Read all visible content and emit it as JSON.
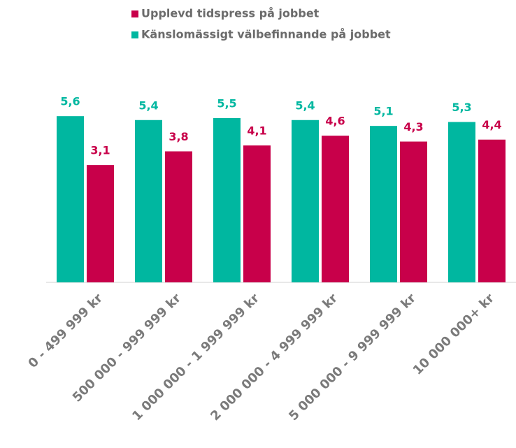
{
  "chart_data": {
    "type": "bar",
    "categories": [
      "0 - 499 999 kr",
      "500 000 - 999 999 kr",
      "1 000 000 - 1 999 999 kr",
      "2 000 000 - 4 999 999 kr",
      "5 000 000 - 9 999 999 kr",
      "10 000 000+ kr"
    ],
    "series": [
      {
        "name": "Upplevd tidspress på jobbet",
        "color": "#c8004a",
        "values": [
          3.1,
          3.8,
          4.1,
          4.6,
          4.3,
          4.4
        ],
        "value_labels": [
          "3,1",
          "3,8",
          "4,1",
          "4,6",
          "4,3",
          "4,4"
        ]
      },
      {
        "name": "Känslomässigt välbefinnande på jobbet",
        "color": "#00b7a0",
        "values": [
          5.6,
          5.4,
          5.5,
          5.4,
          5.1,
          5.3
        ],
        "value_labels": [
          "5,6",
          "5,4",
          "5,5",
          "5,4",
          "5,1",
          "5,3"
        ]
      }
    ],
    "ylim": [
      -2.9,
      7
    ],
    "legend": "top"
  }
}
